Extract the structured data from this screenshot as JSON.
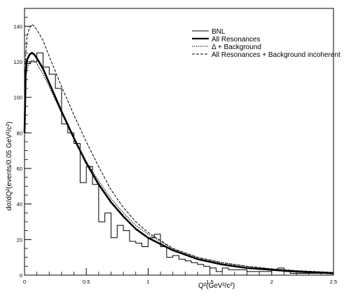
{
  "chart_data": {
    "type": "line",
    "title": "",
    "xlabel": "Q²(GeV²/c²)",
    "ylabel": "dσ/dQ²(events/0.05 GeV²/c²)",
    "xlim": [
      0,
      2.5
    ],
    "ylim": [
      0,
      150
    ],
    "x_ticks": [
      0,
      0.5,
      1,
      1.5,
      2,
      2.5
    ],
    "x_tick_labels": [
      "0",
      "0.5",
      "1",
      "1.5",
      "2",
      "2.5"
    ],
    "y_ticks": [
      0,
      20,
      40,
      60,
      80,
      100,
      120,
      140
    ],
    "y_tick_labels": [
      "0",
      "20",
      "40",
      "60",
      "80",
      "100",
      "120",
      "140"
    ],
    "grid": false,
    "legend_position": "top-right",
    "series": [
      {
        "name": "BNL",
        "kind": "histogram",
        "bin_width": 0.05,
        "bin_start": 0,
        "style": "solid-thin",
        "values": [
          119,
          120,
          125,
          117,
          113,
          105,
          85,
          80,
          74,
          52,
          61,
          51,
          30,
          35,
          21,
          28,
          25,
          19,
          18,
          16,
          21,
          23,
          16,
          10,
          11,
          9,
          8,
          7,
          6,
          5,
          4,
          2,
          4,
          3,
          3,
          3,
          2,
          2,
          2,
          2,
          3,
          4,
          2,
          1,
          1,
          1,
          1,
          1,
          1,
          1
        ]
      },
      {
        "name": "All Resonances",
        "kind": "curve",
        "style": "solid-thick",
        "x": [
          0,
          0.01,
          0.02,
          0.04,
          0.06,
          0.08,
          0.1,
          0.15,
          0.2,
          0.3,
          0.4,
          0.5,
          0.6,
          0.7,
          0.8,
          0.9,
          1.0,
          1.2,
          1.4,
          1.6,
          1.8,
          2.0,
          2.2,
          2.5
        ],
        "y": [
          80,
          115,
          121,
          124,
          125,
          124,
          122,
          116,
          108,
          92,
          77,
          63,
          51,
          41,
          33,
          26,
          21,
          14,
          9,
          6,
          4,
          3,
          2,
          1
        ]
      },
      {
        "name": "Δ + Background",
        "kind": "curve",
        "style": "dotted",
        "x": [
          0,
          0.01,
          0.02,
          0.04,
          0.06,
          0.08,
          0.1,
          0.15,
          0.2,
          0.3,
          0.4,
          0.5,
          0.6,
          0.7,
          0.8,
          0.9,
          1.0,
          1.2,
          1.4,
          1.6,
          1.8,
          2.0,
          2.2,
          2.5
        ],
        "y": [
          82,
          110,
          116,
          119.5,
          121,
          120.5,
          119,
          113,
          106,
          91,
          77,
          64,
          53,
          43,
          35,
          28,
          23,
          15,
          10,
          7,
          5,
          3.5,
          2.5,
          1.5
        ]
      },
      {
        "name": "All Resonances + Background incoherent",
        "kind": "curve",
        "style": "dashed",
        "x": [
          0,
          0.01,
          0.02,
          0.04,
          0.06,
          0.08,
          0.1,
          0.15,
          0.2,
          0.3,
          0.4,
          0.5,
          0.6,
          0.7,
          0.8,
          0.9,
          1.0,
          1.2,
          1.4,
          1.6,
          1.8,
          2.0,
          2.2,
          2.5
        ],
        "y": [
          85,
          125,
          134,
          139,
          141,
          140,
          138,
          132,
          123,
          106,
          90,
          75,
          61,
          48,
          38,
          30,
          24,
          15,
          10,
          7,
          5,
          3.5,
          2.5,
          1.5
        ]
      }
    ]
  }
}
